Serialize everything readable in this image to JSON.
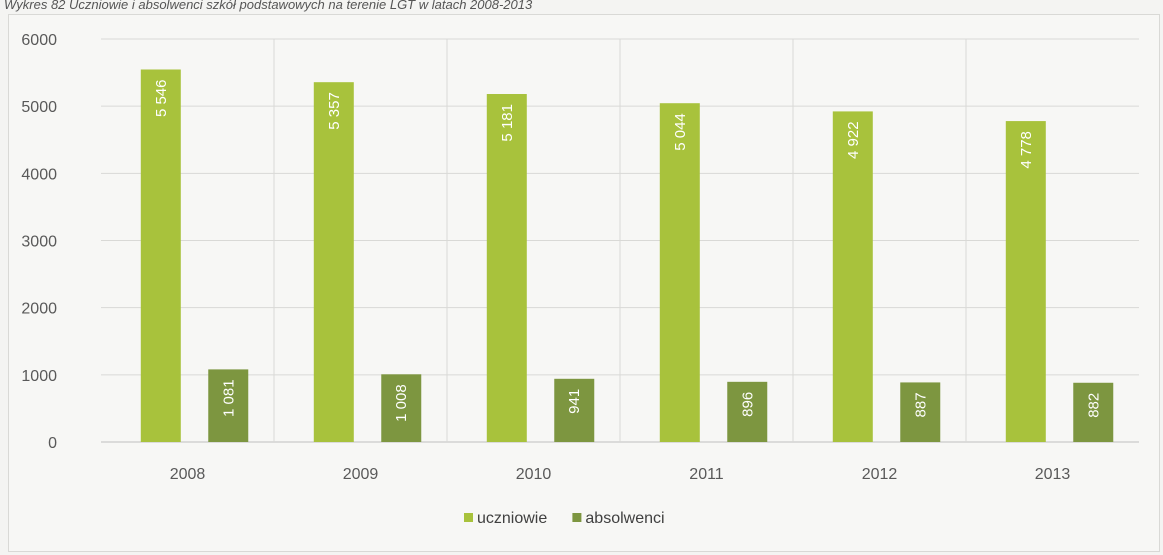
{
  "title": "Wykres 82 Uczniowie i absolwenci szkół podstawowych na terenie LGT w latach 2008-2013",
  "colors": {
    "uczniowie": "#a8c23c",
    "absolwenci": "#7d9640",
    "grid": "#d9d9d6",
    "axis": "#bfbfbf"
  },
  "chart_data": {
    "type": "bar",
    "categories": [
      "2008",
      "2009",
      "2010",
      "2011",
      "2012",
      "2013"
    ],
    "series": [
      {
        "name": "uczniowie",
        "values": [
          5546,
          5357,
          5181,
          5044,
          4922,
          4778
        ],
        "labels": [
          "5 546",
          "5 357",
          "5 181",
          "5 044",
          "4 922",
          "4 778"
        ]
      },
      {
        "name": "absolwenci",
        "values": [
          1081,
          1008,
          941,
          896,
          887,
          882
        ],
        "labels": [
          "1 081",
          "1 008",
          "941",
          "896",
          "887",
          "882"
        ]
      }
    ],
    "ylim": [
      0,
      6000
    ],
    "yticks": [
      "0",
      "1000",
      "2000",
      "3000",
      "4000",
      "5000",
      "6000"
    ],
    "grid": true,
    "legend": "bottom-center"
  }
}
